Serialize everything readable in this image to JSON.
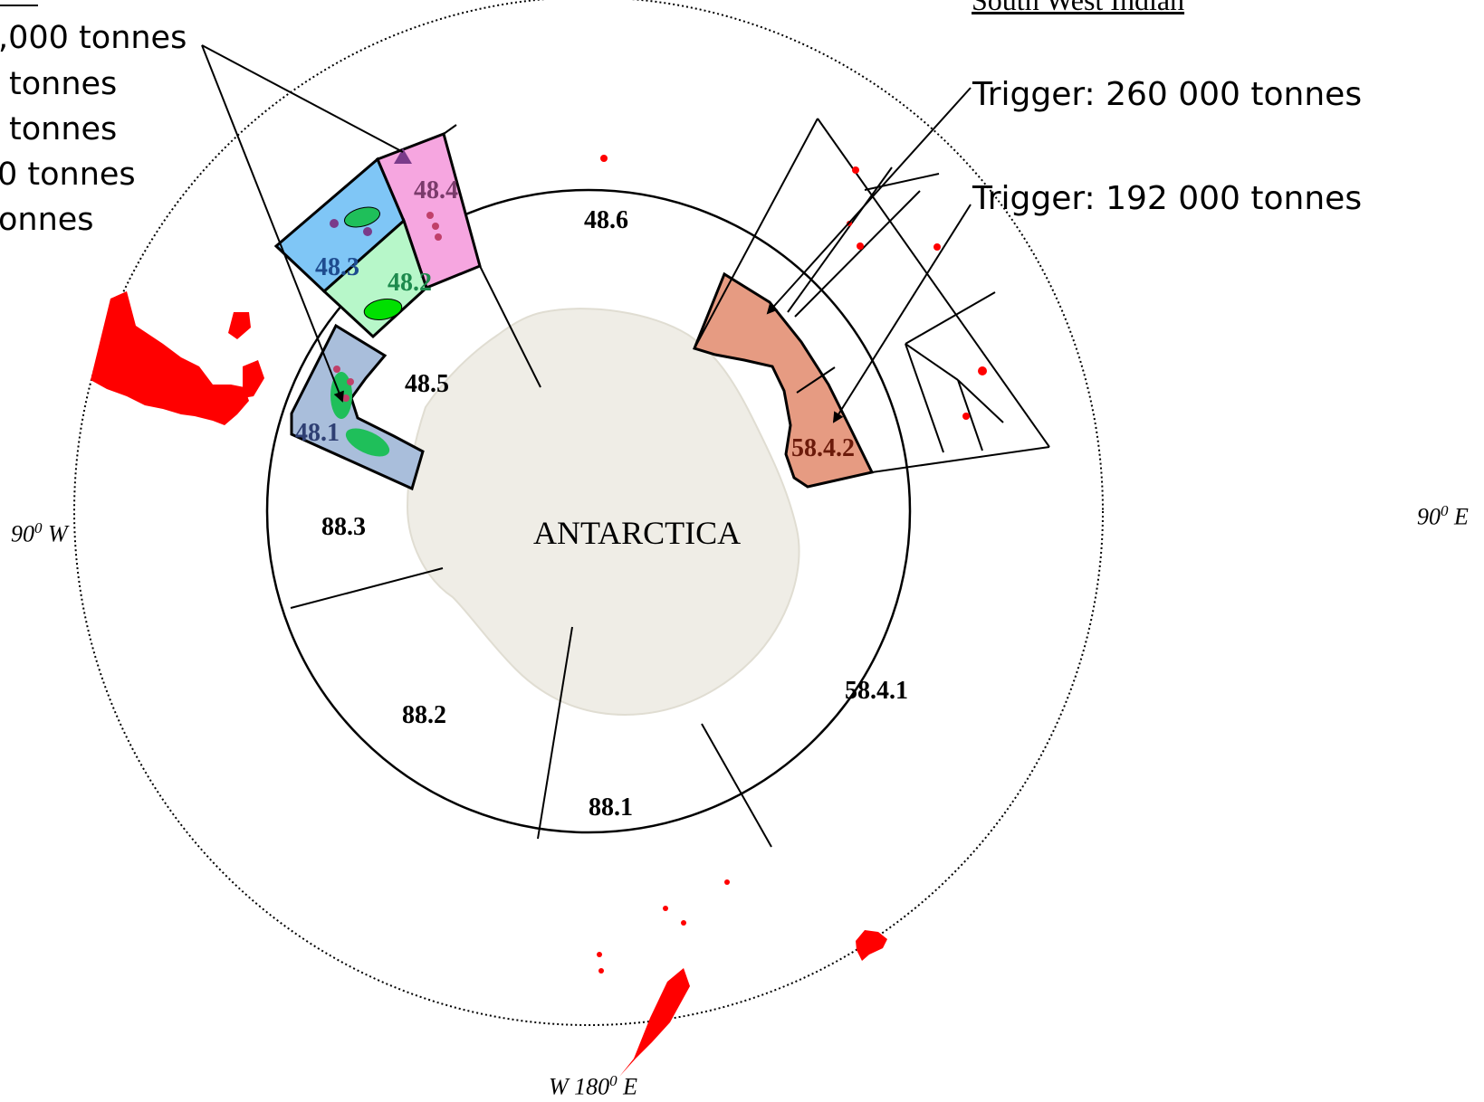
{
  "colors": {
    "area_48_1": "#a9bedb",
    "area_48_2": "#b7f7c9",
    "area_48_3": "#7fc6f6",
    "area_48_4": "#f6a6e0",
    "area_58_4_2": "#e69b82",
    "land_islands": "#ff0000",
    "antarctica": "#efede6",
    "krill_green": "#1fbf5a",
    "krill_purple": "#7a3b8a",
    "label_48_1": "#2e3f73",
    "label_48_2": "#1d8a4d",
    "label_48_3": "#1e4b8f",
    "label_48_4": "#7a3b6b",
    "label_58_4_2": "#6b1a0a"
  },
  "icons": [
    "arrow-icon",
    "triangle-marker-icon"
  ],
  "region_title": "South West Indian",
  "triggers": [
    "Trigger: 260 000 tonnes",
    "Trigger: 192 000 tonnes"
  ],
  "left_text_lines": [
    ",000 tonnes",
    "tonnes",
    "tonnes",
    "0 tonnes",
    "onnes"
  ],
  "areas": {
    "a48_1": "48.1",
    "a48_2": "48.2",
    "a48_3": "48.3",
    "a48_4": "48.4",
    "a48_5": "48.5",
    "a48_6": "48.6",
    "a88_1": "88.1",
    "a88_2": "88.2",
    "a88_3": "88.3",
    "a58_4_1": "58.4.1",
    "a58_4_2": "58.4.2"
  },
  "continent_label": "ANTARCTICA",
  "longitudes": {
    "west": "90",
    "west_dir": "W",
    "east": "90",
    "east_dir": "E",
    "bottom_pre": "W 180",
    "bottom_post": "E",
    "degree_mark": "0"
  }
}
